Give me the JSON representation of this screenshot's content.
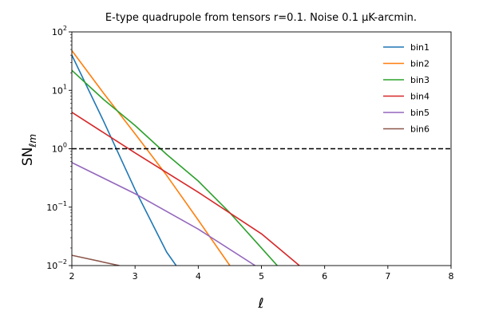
{
  "chart_data": {
    "type": "line",
    "title": "E-type quadrupole from tensors r=0.1. Noise 0.1 μK-arcmin.",
    "xlabel": "ℓ",
    "ylabel": "SN",
    "ylabel_sub": "ℓm",
    "xlim": [
      2,
      8
    ],
    "ylim": [
      0.01,
      100
    ],
    "yscale": "log",
    "xticks": [
      "2",
      "3",
      "4",
      "5",
      "6",
      "7",
      "8"
    ],
    "yticks": [
      {
        "base": "10",
        "exp": "2",
        "value": 100
      },
      {
        "base": "10",
        "exp": "1",
        "value": 10
      },
      {
        "base": "10",
        "exp": "0",
        "value": 1
      },
      {
        "base": "10",
        "exp": "−1",
        "value": 0.1
      },
      {
        "base": "10",
        "exp": "−2",
        "value": 0.01
      }
    ],
    "hline": {
      "y": 1.0,
      "style": "dashed",
      "color": "#000000"
    },
    "legend_position": "top-right",
    "series": [
      {
        "name": "bin1",
        "color": "#1f77b4",
        "x": [
          2,
          2.5,
          3,
          3.5,
          3.65
        ],
        "y": [
          40,
          3,
          0.2,
          0.017,
          0.01
        ]
      },
      {
        "name": "bin2",
        "color": "#ff7f0e",
        "x": [
          2,
          2.5,
          3,
          3.5,
          4,
          4.5
        ],
        "y": [
          48,
          9,
          1.8,
          0.35,
          0.06,
          0.01
        ]
      },
      {
        "name": "bin3",
        "color": "#2ca02c",
        "x": [
          2,
          2.5,
          3,
          3.5,
          4,
          4.5,
          5,
          5.25
        ],
        "y": [
          22,
          7,
          2.5,
          0.8,
          0.28,
          0.08,
          0.02,
          0.01
        ]
      },
      {
        "name": "bin4",
        "color": "#d62728",
        "x": [
          2,
          3,
          4,
          5,
          5.6
        ],
        "y": [
          4.2,
          0.85,
          0.18,
          0.035,
          0.01
        ]
      },
      {
        "name": "bin5",
        "color": "#9467bd",
        "x": [
          2,
          3,
          4,
          4.9
        ],
        "y": [
          0.58,
          0.17,
          0.042,
          0.01
        ]
      },
      {
        "name": "bin6",
        "color": "#8c564b",
        "x": [
          2,
          2.75
        ],
        "y": [
          0.015,
          0.01
        ]
      }
    ]
  }
}
